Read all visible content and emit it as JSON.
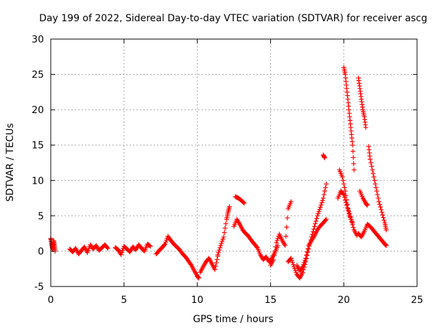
{
  "chart_data": {
    "type": "scatter",
    "title": "Day 199 of 2022, Sidereal Day-to-day VTEC variation (SDTVAR) for receiver ascg",
    "xlabel": "GPS time / hours",
    "ylabel": "SDTVAR / TECUs",
    "xlim": [
      0,
      25
    ],
    "ylim": [
      -5,
      30
    ],
    "xticks": [
      0,
      5,
      10,
      15,
      20,
      25
    ],
    "yticks": [
      -5,
      0,
      5,
      10,
      15,
      20,
      25,
      30
    ],
    "grid": true,
    "marker": "+",
    "color": "#ff0000",
    "segments": [
      {
        "x": [
          0.0,
          0.05,
          0.1,
          0.15,
          0.2,
          0.25,
          0.3
        ],
        "y": [
          1.8,
          1.2,
          0.6,
          0.2,
          1.5,
          0.8,
          0.0
        ]
      },
      {
        "x": [
          1.3,
          1.5,
          1.7,
          1.9,
          2.1,
          2.3,
          2.5,
          2.7,
          2.9,
          3.1,
          3.3,
          3.5,
          3.7,
          3.9
        ],
        "y": [
          0.3,
          -0.1,
          0.4,
          -0.4,
          0.1,
          0.6,
          -0.2,
          0.9,
          0.3,
          0.8,
          0.1,
          0.5,
          0.9,
          0.4
        ]
      },
      {
        "x": [
          4.4,
          4.6,
          4.8,
          5.0,
          5.2,
          5.4,
          5.6,
          5.8,
          6.0,
          6.2,
          6.4,
          6.6,
          6.8
        ],
        "y": [
          0.5,
          0.2,
          -0.5,
          0.7,
          0.3,
          -0.1,
          0.6,
          0.2,
          0.9,
          0.4,
          0.0,
          1.0,
          0.7
        ]
      },
      {
        "x": [
          7.2,
          7.4,
          7.6,
          7.8,
          8.0,
          8.2,
          8.4,
          8.6,
          8.8,
          9.0,
          9.2,
          9.4,
          9.6,
          9.8,
          10.0,
          10.1
        ],
        "y": [
          -0.4,
          0.1,
          0.5,
          1.0,
          2.1,
          1.5,
          1.0,
          0.6,
          0.2,
          -0.4,
          -0.8,
          -1.4,
          -2.0,
          -2.8,
          -3.5,
          -3.8
        ]
      },
      {
        "x": [
          10.2,
          10.4,
          10.6,
          10.8,
          11.0,
          11.2,
          11.4
        ],
        "y": [
          -3.0,
          -2.2,
          -1.5,
          -1.0,
          -1.8,
          -2.6,
          -0.7
        ]
      },
      {
        "x": [
          11.4,
          11.6,
          11.8,
          12.0,
          12.1,
          12.2
        ],
        "y": [
          -0.5,
          0.8,
          2.0,
          4.5,
          5.5,
          6.3
        ]
      },
      {
        "x": [
          12.6,
          12.8,
          13.0,
          13.2
        ],
        "y": [
          7.7,
          7.5,
          7.2,
          6.8
        ]
      },
      {
        "x": [
          12.5,
          12.7,
          12.9,
          13.1,
          13.3,
          13.5,
          13.7,
          13.9,
          14.1,
          14.3,
          14.5,
          14.7,
          14.9,
          15.1,
          15.3,
          15.5
        ],
        "y": [
          3.5,
          4.5,
          3.8,
          3.0,
          2.5,
          2.1,
          1.5,
          1.0,
          0.5,
          -0.5,
          -1.2,
          -0.8,
          -1.5,
          -1.0,
          -0.2,
          0.8
        ]
      },
      {
        "x": [
          15.0,
          15.2,
          15.4,
          15.6,
          15.8,
          16.0,
          16.2,
          16.4
        ],
        "y": [
          -2.0,
          -1.2,
          1.2,
          2.4,
          1.5,
          0.8,
          6.0,
          7.0
        ]
      },
      {
        "x": [
          16.2,
          16.4,
          16.6,
          16.8,
          17.0,
          17.2,
          17.4,
          17.6,
          17.8,
          18.0,
          18.2,
          18.4,
          18.6,
          18.8
        ],
        "y": [
          -1.5,
          -1.0,
          -2.2,
          -3.3,
          -3.8,
          -3.0,
          -1.5,
          0.3,
          2.0,
          3.5,
          5.0,
          6.2,
          7.5,
          9.5
        ]
      },
      {
        "x": [
          16.8,
          17.0,
          17.2,
          17.4,
          17.6,
          17.8,
          18.0,
          18.2,
          18.4,
          18.6,
          18.8
        ],
        "y": [
          -2.0,
          -2.8,
          -2.2,
          -1.0,
          0.8,
          1.5,
          2.2,
          3.0,
          3.6,
          4.0,
          4.5
        ]
      },
      {
        "x": [
          18.6,
          18.7
        ],
        "y": [
          13.6,
          13.2
        ]
      },
      {
        "x": [
          19.7,
          19.9,
          20.1,
          20.3,
          20.5,
          20.7,
          20.9
        ],
        "y": [
          11.5,
          10.5,
          8.5,
          6.0,
          4.5,
          3.0,
          2.2
        ]
      },
      {
        "x": [
          19.6,
          19.8,
          20.0,
          20.2,
          20.4,
          20.6
        ],
        "y": [
          7.5,
          8.5,
          8.0,
          6.5,
          5.0,
          4.0
        ]
      },
      {
        "x": [
          20.0,
          20.1,
          20.2,
          20.3,
          20.4,
          20.5,
          20.6,
          20.7
        ],
        "y": [
          26.0,
          25.0,
          23.0,
          21.0,
          19.0,
          17.0,
          15.0,
          11.5
        ]
      },
      {
        "x": [
          21.0,
          21.1,
          21.2,
          21.3,
          21.4,
          21.5
        ],
        "y": [
          24.5,
          23.0,
          21.5,
          20.0,
          19.0,
          17.5
        ]
      },
      {
        "x": [
          21.1,
          21.3,
          21.5,
          21.6
        ],
        "y": [
          8.5,
          7.5,
          6.8,
          6.5
        ]
      },
      {
        "x": [
          21.7,
          21.8,
          22.0,
          22.2,
          22.4,
          22.6,
          22.8,
          22.9
        ],
        "y": [
          14.8,
          13.0,
          11.0,
          9.0,
          7.0,
          5.5,
          4.0,
          3.0
        ]
      },
      {
        "x": [
          21.0,
          21.2,
          21.4,
          21.6,
          21.8,
          22.0,
          22.2,
          22.4,
          22.6,
          22.8,
          22.9
        ],
        "y": [
          2.5,
          2.0,
          2.8,
          3.8,
          3.5,
          3.0,
          2.5,
          2.0,
          1.5,
          1.0,
          0.8
        ]
      }
    ]
  }
}
